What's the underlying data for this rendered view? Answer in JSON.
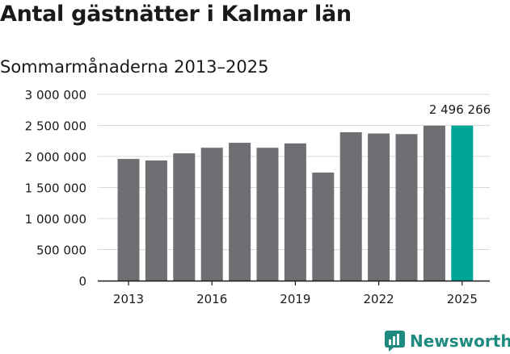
{
  "chart_data": {
    "type": "bar",
    "title": "Antal gästnätter i Kalmar län",
    "subtitle": "Sommarmånaderna 2013–2025",
    "x": [
      2013,
      2014,
      2015,
      2016,
      2017,
      2018,
      2019,
      2020,
      2021,
      2022,
      2023,
      2024,
      2025
    ],
    "values": [
      1960000,
      1935000,
      2050000,
      2140000,
      2220000,
      2140000,
      2210000,
      1740000,
      2390000,
      2370000,
      2360000,
      2495000,
      2496266
    ],
    "x_ticks": [
      "2013",
      "2016",
      "2019",
      "2022",
      "2025"
    ],
    "y_ticks": [
      "0",
      "500 000",
      "1 000 000",
      "1 500 000",
      "2 000 000",
      "2 500 000",
      "3 000 000"
    ],
    "ylim": [
      0,
      3000000
    ],
    "grid": true,
    "colors": {
      "bar": "#6f6e73",
      "highlight": "#00a59a",
      "grid": "#d9d9d9"
    },
    "highlight_index": 12,
    "annotation": "2 496 266"
  },
  "brand": {
    "name": "Newsworthy",
    "icon": "bar-chart-speech-icon",
    "color": "#1f8a80"
  }
}
